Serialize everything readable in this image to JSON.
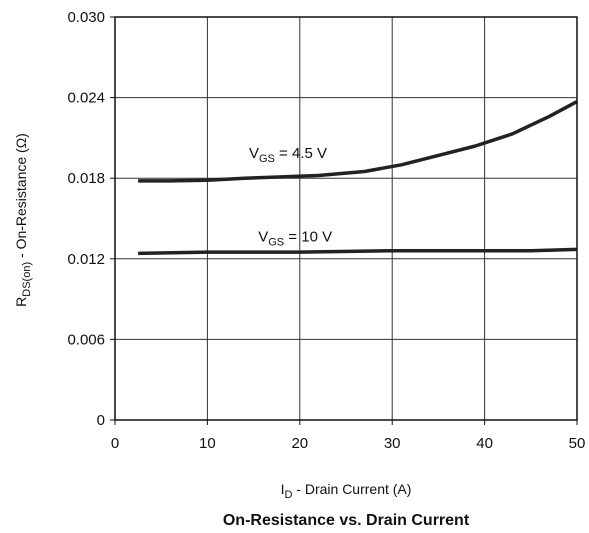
{
  "chart_data": {
    "type": "line",
    "title": "On-Resistance vs. Drain Current",
    "xlabel": {
      "main": "I",
      "sub": "D",
      "rest": " - Drain Current (A)"
    },
    "ylabel": {
      "main": "R",
      "sub": "DS(on)",
      "rest": " - On-Resistance (Ω)"
    },
    "xlim": [
      0,
      50
    ],
    "ylim": [
      0,
      0.03
    ],
    "x_ticks": [
      0,
      10,
      20,
      30,
      40,
      50
    ],
    "x_tick_labels": [
      "0",
      "10",
      "20",
      "30",
      "40",
      "50"
    ],
    "y_ticks": [
      0,
      0.006,
      0.012,
      0.018,
      0.024,
      0.03
    ],
    "y_tick_labels": [
      "0",
      "0.006",
      "0.012",
      "0.018",
      "0.024",
      "0.030"
    ],
    "grid": true,
    "line_color": "#222222",
    "series": [
      {
        "name": {
          "main": "V",
          "sub": "GS",
          "rest": " = 4.5 V"
        },
        "label_at": [
          14.5,
          0.0195
        ],
        "x": [
          2.5,
          6,
          10,
          14,
          18,
          22,
          27,
          31,
          35,
          39,
          43,
          47,
          50
        ],
        "y": [
          0.0178,
          0.0178,
          0.01785,
          0.018,
          0.0181,
          0.0182,
          0.0185,
          0.019,
          0.0197,
          0.0204,
          0.0213,
          0.0226,
          0.0237
        ]
      },
      {
        "name": {
          "main": "V",
          "sub": "GS",
          "rest": " = 10 V"
        },
        "label_at": [
          15.5,
          0.0133
        ],
        "x": [
          2.5,
          10,
          20,
          30,
          40,
          45,
          50
        ],
        "y": [
          0.0124,
          0.0125,
          0.0125,
          0.0126,
          0.0126,
          0.0126,
          0.0127
        ]
      }
    ]
  }
}
